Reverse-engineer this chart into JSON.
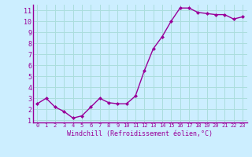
{
  "x": [
    0,
    1,
    2,
    3,
    4,
    5,
    6,
    7,
    8,
    9,
    10,
    11,
    12,
    13,
    14,
    15,
    16,
    17,
    18,
    19,
    20,
    21,
    22,
    23
  ],
  "y": [
    2.5,
    3.0,
    2.2,
    1.8,
    1.2,
    1.4,
    2.2,
    3.0,
    2.6,
    2.5,
    2.5,
    3.2,
    5.5,
    7.5,
    8.6,
    10.0,
    11.2,
    11.2,
    10.8,
    10.7,
    10.6,
    10.6,
    10.2,
    10.4
  ],
  "line_color": "#990099",
  "marker": "D",
  "marker_size": 2,
  "linewidth": 1.0,
  "xlabel": "Windchill (Refroidissement éolien,°C)",
  "xlabel_fontsize": 6,
  "ylabel_ticks": [
    1,
    2,
    3,
    4,
    5,
    6,
    7,
    8,
    9,
    10,
    11
  ],
  "xtick_labels": [
    "0",
    "1",
    "2",
    "3",
    "4",
    "5",
    "6",
    "7",
    "8",
    "9",
    "10",
    "11",
    "12",
    "13",
    "14",
    "15",
    "16",
    "17",
    "18",
    "19",
    "20",
    "21",
    "22",
    "23"
  ],
  "xlim": [
    -0.5,
    23.5
  ],
  "ylim": [
    0.8,
    11.5
  ],
  "bg_color": "#cceeff",
  "grid_color": "#aadddd",
  "tick_color": "#990099",
  "label_color": "#990099",
  "spine_color": "#990099"
}
